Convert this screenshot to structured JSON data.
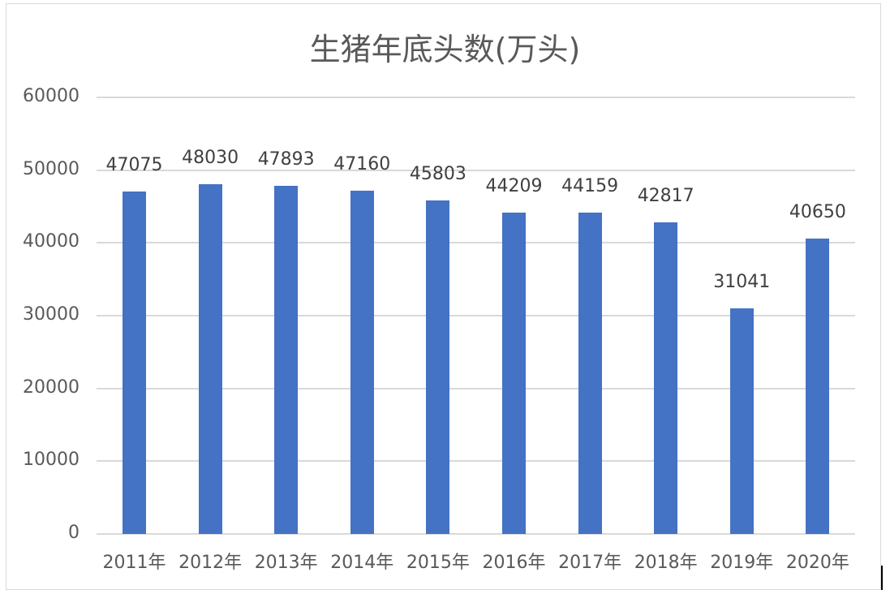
{
  "chart": {
    "title": "生猪年底头数(万头)",
    "colors": {
      "bar": "#4472C4",
      "grid": "#D9D9D9",
      "text": "#595959"
    }
  },
  "chart_data": {
    "type": "bar",
    "title": "生猪年底头数(万头)",
    "xlabel": "",
    "ylabel": "",
    "categories": [
      "2011年",
      "2012年",
      "2013年",
      "2014年",
      "2015年",
      "2016年",
      "2017年",
      "2018年",
      "2019年",
      "2020年"
    ],
    "values": [
      47075,
      48030,
      47893,
      47160,
      45803,
      44209,
      44159,
      42817,
      31041,
      40650
    ],
    "value_labels": [
      "47075",
      "48030",
      "47893",
      "47160",
      "45803",
      "44209",
      "44159",
      "42817",
      "31041",
      "40650"
    ],
    "ylim": [
      0,
      60000
    ],
    "yticks": [
      "0",
      "10000",
      "20000",
      "30000",
      "40000",
      "50000",
      "60000"
    ],
    "grid": true,
    "legend": null
  }
}
